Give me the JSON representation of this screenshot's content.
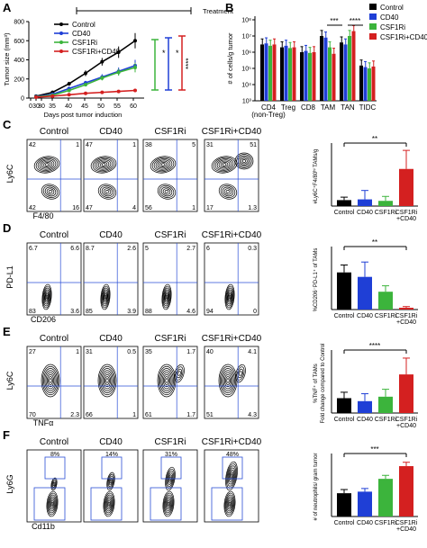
{
  "panels": {
    "A": {
      "letter": "A",
      "treatment_label": "Treatment",
      "ylabel": "Tumor size (mm³)",
      "xlabel": "Days post tumor induction",
      "xticks": [
        "0",
        "30",
        "30",
        "35",
        "40",
        "45",
        "50",
        "55",
        "60"
      ],
      "yticks": [
        "0",
        "200",
        "400",
        "600",
        "800"
      ],
      "legend": [
        "Control",
        "CD40",
        "CSF1Ri",
        "CSF1Ri+CD40"
      ],
      "significance": [
        "*",
        "*",
        "****"
      ]
    },
    "B": {
      "letter": "B",
      "ylabel": "# of cells/g tumor",
      "yticks": [
        "10³",
        "10⁴",
        "10⁵",
        "10⁶",
        "10⁷",
        "10⁸"
      ],
      "categories": [
        "CD4\n(non-Treg)",
        "Treg",
        "CD8",
        "TAM",
        "TAN",
        "TIDC"
      ],
      "legend": [
        "Control",
        "CD40",
        "CSF1Ri",
        "CSF1Ri+CD40"
      ],
      "significance": [
        "***",
        "****"
      ]
    },
    "C": {
      "letter": "C",
      "conditions": [
        "Control",
        "CD40",
        "CSF1Ri",
        "CSF1Ri+CD40"
      ],
      "y_axis": "Ly6C",
      "x_axis": "F4/80",
      "quadrants": [
        {
          "tl": "42",
          "tr": "1",
          "bl": "42",
          "br": "16"
        },
        {
          "tl": "47",
          "tr": "1",
          "bl": "47",
          "br": "4"
        },
        {
          "tl": "38",
          "tr": "5",
          "bl": "56",
          "br": "1"
        },
        {
          "tl": "31",
          "tr": "51",
          "bl": "17",
          "br": "1.3"
        }
      ],
      "bar_ylabel": "#Ly6C⁺F4/80ʰⁱ TAMs/g",
      "bar_categories": [
        "Control",
        "CD40",
        "CSF1Ri",
        "CSF1Ri\n+CD40"
      ],
      "significance": "**"
    },
    "D": {
      "letter": "D",
      "conditions": [
        "Control",
        "CD40",
        "CSF1Ri",
        "CSF1Ri+CD40"
      ],
      "y_axis": "PD-L1",
      "x_axis": "CD206",
      "quadrants": [
        {
          "tl": "6.7",
          "tr": "6.6",
          "bl": "83",
          "br": "3.6"
        },
        {
          "tl": "8.7",
          "tr": "2.6",
          "bl": "85",
          "br": "3.9"
        },
        {
          "tl": "5",
          "tr": "2.7",
          "bl": "88",
          "br": "4.6"
        },
        {
          "tl": "6",
          "tr": "0.3",
          "bl": "94",
          "br": "0"
        }
      ],
      "bar_ylabel": "%CD206⁻PD-L1⁺ of TAMs",
      "bar_categories": [
        "Control",
        "CD40",
        "CSF1Ri",
        "CSF1Ri\n+CD40"
      ],
      "significance": "**"
    },
    "E": {
      "letter": "E",
      "conditions": [
        "Control",
        "CD40",
        "CSF1Ri",
        "CSF1Ri+CD40"
      ],
      "y_axis": "Ly6C",
      "x_axis": "TNFα",
      "quadrants": [
        {
          "tl": "27",
          "tr": "1",
          "bl": "70",
          "br": "2.3"
        },
        {
          "tl": "31",
          "tr": "0.5",
          "bl": "66",
          "br": "1"
        },
        {
          "tl": "35",
          "tr": "1.7",
          "bl": "61",
          "br": "1.7"
        },
        {
          "tl": "40",
          "tr": "4.1",
          "bl": "51",
          "br": "4.3"
        }
      ],
      "bar_ylabel": "%TNF⁺ of TAMs\nFold change compared to Control",
      "bar_categories": [
        "Control",
        "CD40",
        "CSF1Ri",
        "CSF1Ri\n+CD40"
      ],
      "significance": "****"
    },
    "F": {
      "letter": "F",
      "conditions": [
        "Control",
        "CD40",
        "CSF1Ri",
        "CSF1Ri+CD40"
      ],
      "y_axis": "Ly6G",
      "x_axis": "Cd11b",
      "gate_pcts": [
        "8%",
        "14%",
        "31%",
        "48%"
      ],
      "bar_ylabel": "# of neutrophils/ gram tumor",
      "bar_categories": [
        "Control",
        "CD40",
        "CSF1Ri",
        "CSF1Ri\n+CD40"
      ],
      "significance": "***"
    }
  },
  "colors": {
    "control": "#000000",
    "cd40": "#1f3fd6",
    "csf1ri": "#3cb43c",
    "combo": "#d42020"
  },
  "chart_data": [
    {
      "type": "line",
      "panel": "A",
      "x": [
        30,
        35,
        40,
        45,
        50,
        55,
        60
      ],
      "series": [
        {
          "name": "Control",
          "values": [
            20,
            60,
            150,
            260,
            380,
            480,
            600
          ]
        },
        {
          "name": "CD40",
          "values": [
            15,
            40,
            100,
            160,
            220,
            280,
            340
          ]
        },
        {
          "name": "CSF1Ri",
          "values": [
            12,
            30,
            80,
            140,
            210,
            270,
            320
          ]
        },
        {
          "name": "CSF1Ri+CD40",
          "values": [
            10,
            20,
            35,
            50,
            60,
            70,
            80
          ]
        }
      ],
      "xlabel": "Days post tumor induction",
      "ylabel": "Tumor size (mm³)",
      "ylim": [
        0,
        800
      ]
    },
    {
      "type": "bar",
      "panel": "B",
      "categories": [
        "CD4 (non-Treg)",
        "Treg",
        "CD8",
        "TAM",
        "TAN",
        "TIDC"
      ],
      "series": [
        {
          "name": "Control",
          "values": [
            3000000,
            2000000,
            1000000,
            10000000,
            4000000,
            150000
          ]
        },
        {
          "name": "CD40",
          "values": [
            3500000,
            2500000,
            1200000,
            8000000,
            3000000,
            120000
          ]
        },
        {
          "name": "CSF1Ri",
          "values": [
            2500000,
            1800000,
            900000,
            2000000,
            10000000,
            100000
          ]
        },
        {
          "name": "CSF1Ri+CD40",
          "values": [
            3000000,
            2000000,
            1000000,
            800000,
            20000000,
            130000
          ]
        }
      ],
      "ylabel": "# of cells/g tumor",
      "log_scale": true,
      "ylim": [
        1000,
        100000000
      ]
    },
    {
      "type": "bar",
      "panel": "C",
      "categories": [
        "Control",
        "CD40",
        "CSF1Ri",
        "CSF1Ri+CD40"
      ],
      "values": [
        8,
        9,
        7,
        50
      ],
      "errors": [
        4,
        12,
        6,
        25
      ],
      "ylim": [
        0,
        80
      ]
    },
    {
      "type": "bar",
      "panel": "D",
      "categories": [
        "Control",
        "CD40",
        "CSF1Ri",
        "CSF1Ri+CD40"
      ],
      "values": [
        12.5,
        11,
        6,
        0.6
      ],
      "errors": [
        2.5,
        5,
        2,
        0.4
      ],
      "ylim": [
        0,
        20
      ]
    },
    {
      "type": "bar",
      "panel": "E",
      "categories": [
        "Control",
        "CD40",
        "CSF1Ri",
        "CSF1Ri+CD40"
      ],
      "values": [
        1.0,
        0.8,
        1.1,
        2.6
      ],
      "errors": [
        0.4,
        0.5,
        0.5,
        1.1
      ],
      "ylim": [
        0,
        4
      ]
    },
    {
      "type": "bar",
      "panel": "F",
      "categories": [
        "Control",
        "CD40",
        "CSF1Ri",
        "CSF1Ri+CD40"
      ],
      "values": [
        15000,
        18000,
        80000,
        350000
      ],
      "errors": [
        8000,
        8000,
        40000,
        200000
      ],
      "log_scale": true
    }
  ]
}
